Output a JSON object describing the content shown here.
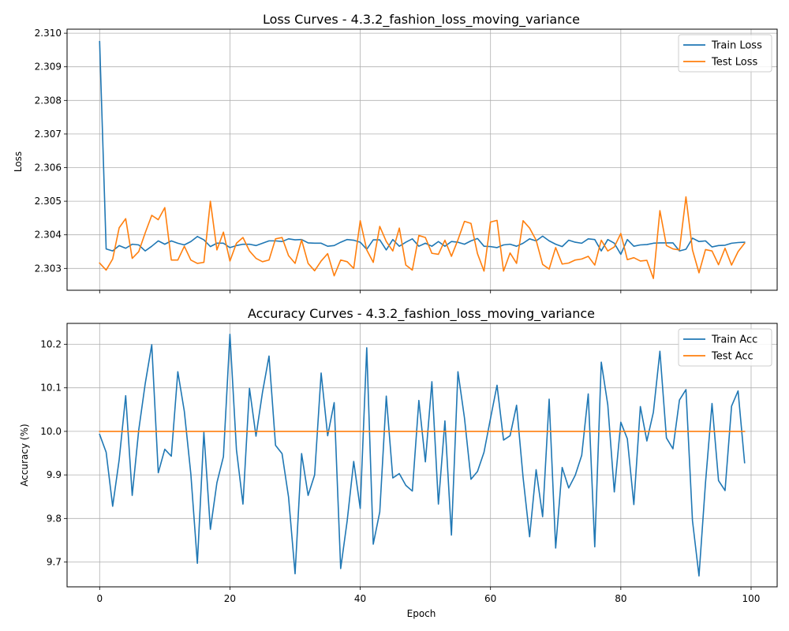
{
  "chart_data": [
    {
      "type": "line",
      "title": "Loss Curves - 4.3.2_fashion_loss_moving_variance",
      "xlabel": "",
      "ylabel": "Loss",
      "xlim": [
        -5,
        104
      ],
      "ylim": [
        2.30235,
        2.31012
      ],
      "xticks": [
        0,
        20,
        40,
        60,
        80,
        100
      ],
      "xtick_labels": [
        "",
        "",
        "",
        "",
        "",
        ""
      ],
      "yticks": [
        2.303,
        2.304,
        2.305,
        2.306,
        2.307,
        2.308,
        2.309,
        2.31
      ],
      "ytick_labels": [
        "2.303",
        "2.304",
        "2.305",
        "2.306",
        "2.307",
        "2.308",
        "2.309",
        "2.310"
      ],
      "grid": true,
      "legend": "top-right",
      "colors": [
        "#1f77b4",
        "#ff7f0e"
      ],
      "series": [
        {
          "name": "Train Loss",
          "values": [
            2.30975,
            2.30358,
            2.30352,
            2.30368,
            2.3036,
            2.30372,
            2.3037,
            2.30352,
            2.30366,
            2.30382,
            2.30372,
            2.30382,
            2.30375,
            2.3037,
            2.3038,
            2.30395,
            2.30385,
            2.30365,
            2.30375,
            2.30375,
            2.30362,
            2.30368,
            2.30372,
            2.30372,
            2.30368,
            2.30375,
            2.30382,
            2.30382,
            2.3038,
            2.30388,
            2.30385,
            2.30386,
            2.30376,
            2.30375,
            2.30375,
            2.30366,
            2.30368,
            2.30378,
            2.30386,
            2.30384,
            2.30378,
            2.30357,
            2.30385,
            2.30385,
            2.30355,
            2.30386,
            2.30366,
            2.30378,
            2.30388,
            2.30366,
            2.30375,
            2.30366,
            2.3038,
            2.30366,
            2.3038,
            2.30378,
            2.30372,
            2.30382,
            2.30389,
            2.30366,
            2.30365,
            2.30362,
            2.3037,
            2.30372,
            2.30366,
            2.30375,
            2.30388,
            2.30382,
            2.30396,
            2.30382,
            2.30372,
            2.30365,
            2.30384,
            2.30378,
            2.30375,
            2.30388,
            2.30386,
            2.30352,
            2.30386,
            2.30375,
            2.30342,
            2.30386,
            2.30366,
            2.3037,
            2.30371,
            2.30375,
            2.30376,
            2.30376,
            2.30376,
            2.30352,
            2.30357,
            2.3039,
            2.3038,
            2.30382,
            2.30364,
            2.30368,
            2.30369,
            2.30375,
            2.30377,
            2.30378
          ]
        },
        {
          "name": "Test Loss",
          "values": [
            2.30316,
            2.30295,
            2.30328,
            2.30421,
            2.30448,
            2.3033,
            2.3035,
            2.30406,
            2.30458,
            2.30445,
            2.30481,
            2.30325,
            2.30325,
            2.30366,
            2.30325,
            2.30315,
            2.30318,
            2.305,
            2.30355,
            2.30408,
            2.30322,
            2.30375,
            2.30392,
            2.30352,
            2.3033,
            2.3032,
            2.30325,
            2.30388,
            2.30392,
            2.30338,
            2.30315,
            2.30385,
            2.30315,
            2.30293,
            2.30322,
            2.30344,
            2.30278,
            2.30325,
            2.3032,
            2.303,
            2.30442,
            2.30355,
            2.30318,
            2.30425,
            2.3038,
            2.30352,
            2.3042,
            2.3031,
            2.30295,
            2.30398,
            2.30392,
            2.30345,
            2.30342,
            2.30384,
            2.30336,
            2.30385,
            2.3044,
            2.30434,
            2.30344,
            2.30292,
            2.30438,
            2.30443,
            2.30292,
            2.30346,
            2.30315,
            2.30442,
            2.3042,
            2.30384,
            2.30312,
            2.30298,
            2.30362,
            2.30313,
            2.30316,
            2.30325,
            2.30328,
            2.30336,
            2.3031,
            2.30384,
            2.30352,
            2.30364,
            2.30404,
            2.30326,
            2.30332,
            2.30322,
            2.30324,
            2.3027,
            2.30472,
            2.30368,
            2.30358,
            2.30355,
            2.30513,
            2.30355,
            2.30287,
            2.30356,
            2.30352,
            2.30311,
            2.3036,
            2.3031,
            2.3035,
            2.30375
          ]
        }
      ]
    },
    {
      "type": "line",
      "title": "Accuracy Curves - 4.3.2_fashion_loss_moving_variance",
      "xlabel": "Epoch",
      "ylabel": "Accuracy (%)",
      "xlim": [
        -5,
        104
      ],
      "ylim": [
        9.643,
        10.248
      ],
      "xticks": [
        0,
        20,
        40,
        60,
        80,
        100
      ],
      "xtick_labels": [
        "0",
        "20",
        "40",
        "60",
        "80",
        "100"
      ],
      "yticks": [
        9.7,
        9.8,
        9.9,
        10.0,
        10.1,
        10.2
      ],
      "ytick_labels": [
        "9.7",
        "9.8",
        "9.9",
        "10.0",
        "10.1",
        "10.2"
      ],
      "grid": true,
      "legend": "top-right",
      "colors": [
        "#1f77b4",
        "#ff7f0e"
      ],
      "series": [
        {
          "name": "Train Acc",
          "values": [
            9.993,
            9.952,
            9.828,
            9.935,
            10.082,
            9.853,
            10.003,
            10.11,
            10.199,
            9.905,
            9.959,
            9.943,
            10.137,
            10.046,
            9.902,
            9.697,
            9.998,
            9.775,
            9.882,
            9.942,
            10.223,
            9.958,
            9.833,
            10.099,
            9.989,
            10.09,
            10.173,
            9.968,
            9.949,
            9.849,
            9.673,
            9.949,
            9.853,
            9.9,
            10.134,
            9.99,
            10.066,
            9.685,
            9.795,
            9.931,
            9.823,
            10.192,
            9.741,
            9.815,
            10.081,
            9.893,
            9.903,
            9.876,
            9.863,
            10.071,
            9.93,
            10.114,
            9.833,
            10.024,
            9.762,
            10.137,
            10.031,
            9.89,
            9.908,
            9.952,
            10.03,
            10.106,
            9.98,
            9.99,
            10.06,
            9.894,
            9.758,
            9.912,
            9.804,
            10.074,
            9.732,
            9.917,
            9.87,
            9.899,
            9.945,
            10.086,
            9.735,
            10.159,
            10.061,
            9.861,
            10.021,
            9.983,
            9.832,
            10.057,
            9.978,
            10.044,
            10.184,
            9.985,
            9.96,
            10.072,
            10.096,
            9.795,
            9.668,
            9.882,
            10.064,
            9.887,
            9.864,
            10.058,
            10.093,
            9.928
          ]
        },
        {
          "name": "Test Acc",
          "values": [
            10.0,
            10.0,
            10.0,
            10.0,
            10.0,
            10.0,
            10.0,
            10.0,
            10.0,
            10.0,
            10.0,
            10.0,
            10.0,
            10.0,
            10.0,
            10.0,
            10.0,
            10.0,
            10.0,
            10.0,
            10.0,
            10.0,
            10.0,
            10.0,
            10.0,
            10.0,
            10.0,
            10.0,
            10.0,
            10.0,
            10.0,
            10.0,
            10.0,
            10.0,
            10.0,
            10.0,
            10.0,
            10.0,
            10.0,
            10.0,
            10.0,
            10.0,
            10.0,
            10.0,
            10.0,
            10.0,
            10.0,
            10.0,
            10.0,
            10.0,
            10.0,
            10.0,
            10.0,
            10.0,
            10.0,
            10.0,
            10.0,
            10.0,
            10.0,
            10.0,
            10.0,
            10.0,
            10.0,
            10.0,
            10.0,
            10.0,
            10.0,
            10.0,
            10.0,
            10.0,
            10.0,
            10.0,
            10.0,
            10.0,
            10.0,
            10.0,
            10.0,
            10.0,
            10.0,
            10.0,
            10.0,
            10.0,
            10.0,
            10.0,
            10.0,
            10.0,
            10.0,
            10.0,
            10.0,
            10.0,
            10.0,
            10.0,
            10.0,
            10.0,
            10.0,
            10.0,
            10.0,
            10.0,
            10.0,
            10.0
          ]
        }
      ]
    }
  ]
}
